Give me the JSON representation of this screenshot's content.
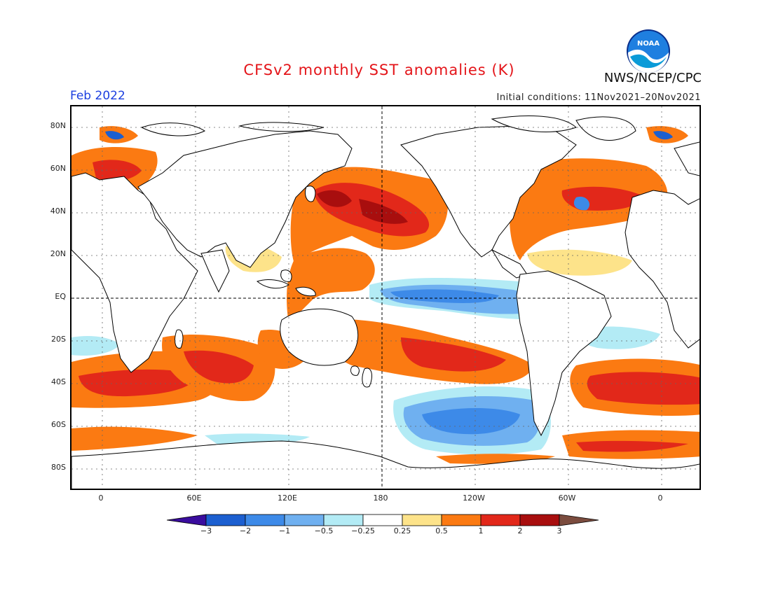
{
  "header": {
    "title": "CFSv2 monthly SST anomalies (K)",
    "month": "Feb 2022",
    "initial_conditions": "Initial conditions: 11Nov2021–20Nov2021",
    "organization": "NWS/NCEP/CPC",
    "logo_text": "NOAA"
  },
  "axes": {
    "lat_labels": [
      "80N",
      "60N",
      "40N",
      "20N",
      "EQ",
      "20S",
      "40S",
      "60S",
      "80S"
    ],
    "lon_labels": [
      "0",
      "60E",
      "120E",
      "180",
      "120W",
      "60W",
      "0"
    ]
  },
  "colorbar": {
    "labels": [
      "−3",
      "−2",
      "−1",
      "−0.5",
      "−0.25",
      "0.25",
      "0.5",
      "1",
      "2",
      "3"
    ],
    "colors": [
      "#3a0d9e",
      "#1c5fd0",
      "#3d8ae8",
      "#6fb0f0",
      "#b3ebf5",
      "#ffffff",
      "#fde38a",
      "#fb7a12",
      "#e2281a",
      "#a80e0e",
      "#7b4c3e"
    ]
  }
}
